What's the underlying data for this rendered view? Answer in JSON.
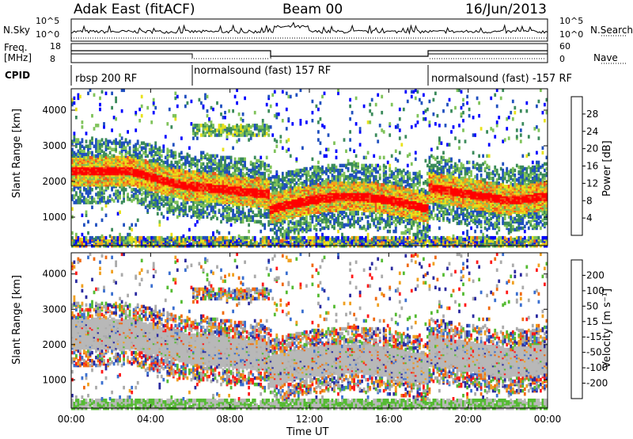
{
  "header": {
    "radar": "Adak East (fitACF)",
    "beam": "Beam 00",
    "date": "16/Jun/2013"
  },
  "noise_panel": {
    "left_label": "N.Sky",
    "right_label": "N.Search",
    "left_ticks": [
      "10^5",
      "10^0"
    ],
    "right_ticks": [
      "10^5",
      "10^0"
    ]
  },
  "freq_panel": {
    "left_label_1": "Freq.",
    "left_label_2": "[MHz]",
    "left_ticks": [
      "18",
      "8"
    ],
    "right_label": "Nave",
    "right_ticks": [
      "60",
      "0"
    ]
  },
  "cpid_panel": {
    "label": "CPID",
    "segments": [
      {
        "name": "rbsp 200 RF",
        "start_hour": 0
      },
      {
        "name": "normalsound (fast) 157 RF",
        "start_hour": 6
      },
      {
        "name": "normalsound (fast) -157 RF",
        "start_hour": 18
      }
    ]
  },
  "chart_data": [
    {
      "type": "heatmap",
      "title": "",
      "ylabel": "Slant Range [km]",
      "xlabel": "",
      "y_ticks": [
        "1000",
        "2000",
        "3000",
        "4000"
      ],
      "ylim": [
        200,
        4600
      ],
      "xlim_hours": [
        0,
        24
      ],
      "colorbar": {
        "label": "Power [dB]",
        "ticks": [
          "4",
          "8",
          "12",
          "16",
          "20",
          "24",
          "28"
        ],
        "range": [
          0,
          30
        ]
      }
    },
    {
      "type": "heatmap",
      "title": "",
      "ylabel": "Slant Range [km]",
      "xlabel": "Time UT",
      "y_ticks": [
        "1000",
        "2000",
        "3000",
        "4000"
      ],
      "x_ticks": [
        "00:00",
        "04:00",
        "08:00",
        "12:00",
        "16:00",
        "20:00",
        "00:00"
      ],
      "ylim": [
        200,
        4600
      ],
      "xlim_hours": [
        0,
        24
      ],
      "colorbar": {
        "label": "Velocity [m s⁻¹]",
        "ticks": [
          "200",
          "100",
          "50",
          "15",
          "-15",
          "-50",
          "-100",
          "-200"
        ]
      }
    }
  ],
  "colors": {
    "power_scale": [
      "#0000ff",
      "#1f4fbf",
      "#3a8a5a",
      "#7fc35a",
      "#e8e21a",
      "#f5a21a",
      "#f0551a",
      "#ff0000"
    ],
    "velocity_scale": [
      "#2a2aa0",
      "#3a6fd0",
      "#55bb33",
      "#aaaaaa",
      "#aaaaaa",
      "#f0a020",
      "#f06a10",
      "#ff1a1a"
    ],
    "ground_scatter": "#b8b8b8"
  }
}
